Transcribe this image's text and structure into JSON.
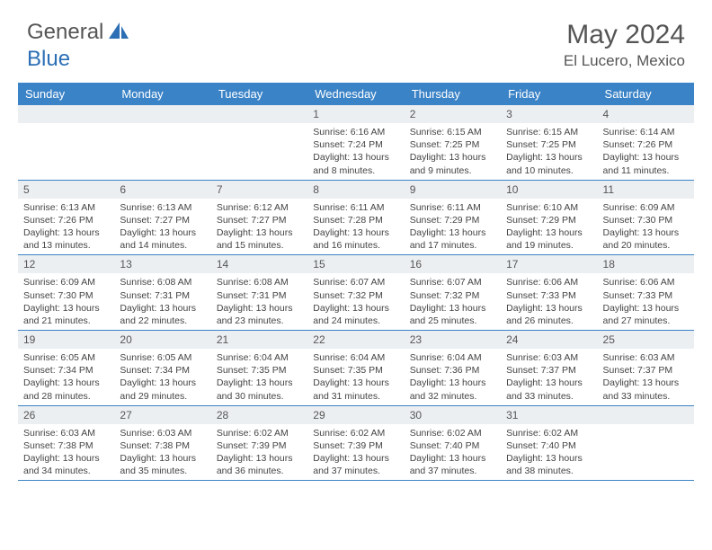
{
  "brand": {
    "part1": "General",
    "part2": "Blue"
  },
  "title": "May 2024",
  "location": "El Lucero, Mexico",
  "colors": {
    "header_bg": "#3b83c7",
    "header_text": "#ffffff",
    "daynum_bg": "#eceff2",
    "text": "#444444",
    "border": "#3b83c7"
  },
  "day_names": [
    "Sunday",
    "Monday",
    "Tuesday",
    "Wednesday",
    "Thursday",
    "Friday",
    "Saturday"
  ],
  "weeks": [
    [
      {
        "day": ""
      },
      {
        "day": ""
      },
      {
        "day": ""
      },
      {
        "day": "1",
        "sunrise": "6:16 AM",
        "sunset": "7:24 PM",
        "daylight": "13 hours and 8 minutes."
      },
      {
        "day": "2",
        "sunrise": "6:15 AM",
        "sunset": "7:25 PM",
        "daylight": "13 hours and 9 minutes."
      },
      {
        "day": "3",
        "sunrise": "6:15 AM",
        "sunset": "7:25 PM",
        "daylight": "13 hours and 10 minutes."
      },
      {
        "day": "4",
        "sunrise": "6:14 AM",
        "sunset": "7:26 PM",
        "daylight": "13 hours and 11 minutes."
      }
    ],
    [
      {
        "day": "5",
        "sunrise": "6:13 AM",
        "sunset": "7:26 PM",
        "daylight": "13 hours and 13 minutes."
      },
      {
        "day": "6",
        "sunrise": "6:13 AM",
        "sunset": "7:27 PM",
        "daylight": "13 hours and 14 minutes."
      },
      {
        "day": "7",
        "sunrise": "6:12 AM",
        "sunset": "7:27 PM",
        "daylight": "13 hours and 15 minutes."
      },
      {
        "day": "8",
        "sunrise": "6:11 AM",
        "sunset": "7:28 PM",
        "daylight": "13 hours and 16 minutes."
      },
      {
        "day": "9",
        "sunrise": "6:11 AM",
        "sunset": "7:29 PM",
        "daylight": "13 hours and 17 minutes."
      },
      {
        "day": "10",
        "sunrise": "6:10 AM",
        "sunset": "7:29 PM",
        "daylight": "13 hours and 19 minutes."
      },
      {
        "day": "11",
        "sunrise": "6:09 AM",
        "sunset": "7:30 PM",
        "daylight": "13 hours and 20 minutes."
      }
    ],
    [
      {
        "day": "12",
        "sunrise": "6:09 AM",
        "sunset": "7:30 PM",
        "daylight": "13 hours and 21 minutes."
      },
      {
        "day": "13",
        "sunrise": "6:08 AM",
        "sunset": "7:31 PM",
        "daylight": "13 hours and 22 minutes."
      },
      {
        "day": "14",
        "sunrise": "6:08 AM",
        "sunset": "7:31 PM",
        "daylight": "13 hours and 23 minutes."
      },
      {
        "day": "15",
        "sunrise": "6:07 AM",
        "sunset": "7:32 PM",
        "daylight": "13 hours and 24 minutes."
      },
      {
        "day": "16",
        "sunrise": "6:07 AM",
        "sunset": "7:32 PM",
        "daylight": "13 hours and 25 minutes."
      },
      {
        "day": "17",
        "sunrise": "6:06 AM",
        "sunset": "7:33 PM",
        "daylight": "13 hours and 26 minutes."
      },
      {
        "day": "18",
        "sunrise": "6:06 AM",
        "sunset": "7:33 PM",
        "daylight": "13 hours and 27 minutes."
      }
    ],
    [
      {
        "day": "19",
        "sunrise": "6:05 AM",
        "sunset": "7:34 PM",
        "daylight": "13 hours and 28 minutes."
      },
      {
        "day": "20",
        "sunrise": "6:05 AM",
        "sunset": "7:34 PM",
        "daylight": "13 hours and 29 minutes."
      },
      {
        "day": "21",
        "sunrise": "6:04 AM",
        "sunset": "7:35 PM",
        "daylight": "13 hours and 30 minutes."
      },
      {
        "day": "22",
        "sunrise": "6:04 AM",
        "sunset": "7:35 PM",
        "daylight": "13 hours and 31 minutes."
      },
      {
        "day": "23",
        "sunrise": "6:04 AM",
        "sunset": "7:36 PM",
        "daylight": "13 hours and 32 minutes."
      },
      {
        "day": "24",
        "sunrise": "6:03 AM",
        "sunset": "7:37 PM",
        "daylight": "13 hours and 33 minutes."
      },
      {
        "day": "25",
        "sunrise": "6:03 AM",
        "sunset": "7:37 PM",
        "daylight": "13 hours and 33 minutes."
      }
    ],
    [
      {
        "day": "26",
        "sunrise": "6:03 AM",
        "sunset": "7:38 PM",
        "daylight": "13 hours and 34 minutes."
      },
      {
        "day": "27",
        "sunrise": "6:03 AM",
        "sunset": "7:38 PM",
        "daylight": "13 hours and 35 minutes."
      },
      {
        "day": "28",
        "sunrise": "6:02 AM",
        "sunset": "7:39 PM",
        "daylight": "13 hours and 36 minutes."
      },
      {
        "day": "29",
        "sunrise": "6:02 AM",
        "sunset": "7:39 PM",
        "daylight": "13 hours and 37 minutes."
      },
      {
        "day": "30",
        "sunrise": "6:02 AM",
        "sunset": "7:40 PM",
        "daylight": "13 hours and 37 minutes."
      },
      {
        "day": "31",
        "sunrise": "6:02 AM",
        "sunset": "7:40 PM",
        "daylight": "13 hours and 38 minutes."
      },
      {
        "day": ""
      }
    ]
  ],
  "labels": {
    "sunrise": "Sunrise:",
    "sunset": "Sunset:",
    "daylight": "Daylight:"
  }
}
